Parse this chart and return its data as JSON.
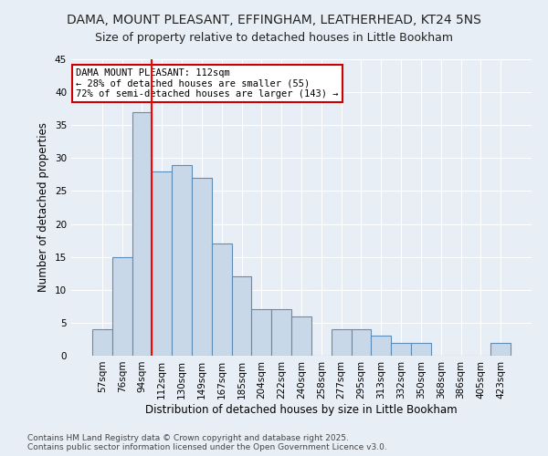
{
  "title": "DAMA, MOUNT PLEASANT, EFFINGHAM, LEATHERHEAD, KT24 5NS",
  "subtitle": "Size of property relative to detached houses in Little Bookham",
  "xlabel": "Distribution of detached houses by size in Little Bookham",
  "ylabel": "Number of detached properties",
  "categories": [
    "57sqm",
    "76sqm",
    "94sqm",
    "112sqm",
    "130sqm",
    "149sqm",
    "167sqm",
    "185sqm",
    "204sqm",
    "222sqm",
    "240sqm",
    "258sqm",
    "277sqm",
    "295sqm",
    "313sqm",
    "332sqm",
    "350sqm",
    "368sqm",
    "386sqm",
    "405sqm",
    "423sqm"
  ],
  "values": [
    4,
    15,
    37,
    28,
    29,
    27,
    17,
    12,
    7,
    7,
    6,
    0,
    4,
    4,
    3,
    2,
    2,
    0,
    0,
    0,
    2
  ],
  "bar_color": "#c8d8e8",
  "bar_edge_color": "#5b8db8",
  "redline_x": 3,
  "annotation_line1": "DAMA MOUNT PLEASANT: 112sqm",
  "annotation_line2": "← 28% of detached houses are smaller (55)",
  "annotation_line3": "72% of semi-detached houses are larger (143) →",
  "annotation_box_color": "#ffffff",
  "annotation_box_edge": "#cc0000",
  "ylim": [
    0,
    45
  ],
  "yticks": [
    0,
    5,
    10,
    15,
    20,
    25,
    30,
    35,
    40,
    45
  ],
  "bg_color": "#e8eef5",
  "grid_color": "#ffffff",
  "footer": "Contains HM Land Registry data © Crown copyright and database right 2025.\nContains public sector information licensed under the Open Government Licence v3.0.",
  "title_fontsize": 10,
  "subtitle_fontsize": 9,
  "axis_label_fontsize": 8.5,
  "tick_fontsize": 7.5,
  "annotation_fontsize": 7.5,
  "footer_fontsize": 6.5
}
